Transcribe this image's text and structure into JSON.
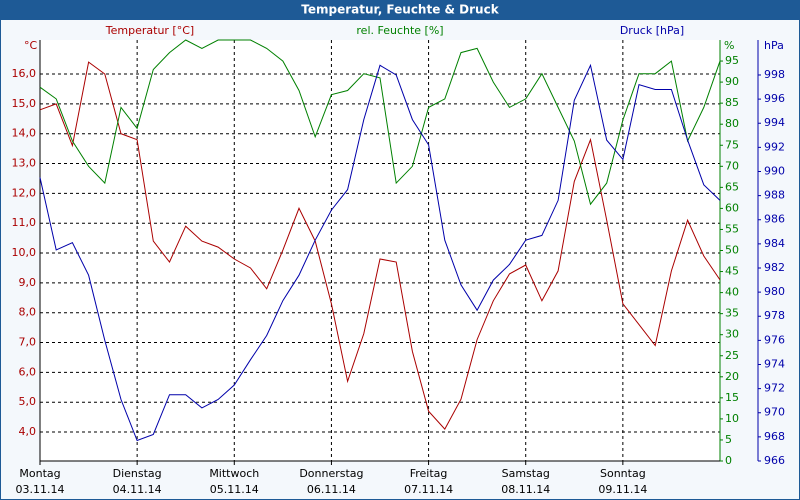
{
  "chart_data": {
    "type": "line",
    "title": "Temperatur, Feuchte & Druck",
    "ylabel": "Temperatur [°C]",
    "y_unit": "°C",
    "y2label": "rel. Feuchte [%]",
    "y2_unit": "%",
    "y3label": "Druck [hPa]",
    "y3_unit": "hPa",
    "xlim": [
      0,
      168
    ],
    "xticks": [
      {
        "value": 0,
        "label": "Montag",
        "date": "03.11.14"
      },
      {
        "value": 24,
        "label": "Dienstag",
        "date": "04.11.14"
      },
      {
        "value": 48,
        "label": "Mittwoch",
        "date": "05.11.14"
      },
      {
        "value": 72,
        "label": "Donnerstag",
        "date": "06.11.14"
      },
      {
        "value": 96,
        "label": "Freitag",
        "date": "07.11.14"
      },
      {
        "value": 120,
        "label": "Samstag",
        "date": "08.11.14"
      },
      {
        "value": 144,
        "label": "Sonntag",
        "date": "09.11.14"
      }
    ],
    "ylim": [
      3.03,
      17.14
    ],
    "yticks": [
      {
        "value": 4,
        "label": "4,0"
      },
      {
        "value": 5,
        "label": "5,0"
      },
      {
        "value": 6,
        "label": "6,0"
      },
      {
        "value": 7,
        "label": "7,0"
      },
      {
        "value": 8,
        "label": "8,0"
      },
      {
        "value": 9,
        "label": "9,0"
      },
      {
        "value": 10,
        "label": "10,0"
      },
      {
        "value": 11,
        "label": "11,0"
      },
      {
        "value": 12,
        "label": "12,0"
      },
      {
        "value": 13,
        "label": "13,0"
      },
      {
        "value": 14,
        "label": "14,0"
      },
      {
        "value": 15,
        "label": "15,0"
      },
      {
        "value": 16,
        "label": "16,0"
      }
    ],
    "y2lim": [
      0,
      100
    ],
    "y2ticks": [
      0,
      5,
      10,
      15,
      20,
      25,
      30,
      35,
      40,
      45,
      50,
      55,
      60,
      65,
      70,
      75,
      80,
      85,
      90,
      95
    ],
    "y3lim": [
      966,
      1000.9
    ],
    "y3ticks": [
      966,
      968,
      970,
      972,
      974,
      976,
      978,
      980,
      982,
      984,
      986,
      988,
      990,
      992,
      994,
      996,
      998
    ],
    "grid": true,
    "x": [
      0,
      4,
      8,
      12,
      16,
      20,
      24,
      28,
      32,
      36,
      40,
      44,
      48,
      52,
      56,
      60,
      64,
      68,
      72,
      76,
      80,
      84,
      88,
      92,
      96,
      100,
      104,
      108,
      112,
      116,
      120,
      124,
      128,
      132,
      136,
      140,
      144,
      148,
      152,
      156,
      160,
      164,
      168
    ],
    "series": [
      {
        "name": "Temperatur",
        "color": "#aa0000",
        "axis": "y",
        "values": [
          14.8,
          15.0,
          13.6,
          16.4,
          16.0,
          14.0,
          13.8,
          10.4,
          9.7,
          10.9,
          10.4,
          10.2,
          9.8,
          9.5,
          8.8,
          10.1,
          11.5,
          10.4,
          8.3,
          5.7,
          7.3,
          9.8,
          9.7,
          6.7,
          4.7,
          4.1,
          5.1,
          7.1,
          8.4,
          9.3,
          9.6,
          8.4,
          9.4,
          12.4,
          13.8,
          11.1,
          8.3,
          7.6,
          6.9,
          9.4,
          11.1,
          9.9,
          9.1
        ]
      },
      {
        "name": "rel. Feuchte",
        "color": "#008000",
        "axis": "y2",
        "values": [
          88.8,
          86,
          76,
          70,
          66,
          84,
          79,
          93,
          97,
          100,
          98,
          100,
          100,
          100,
          98,
          95,
          88,
          77,
          87,
          88,
          92,
          91,
          66,
          70,
          84,
          86,
          97,
          98,
          90,
          84,
          86,
          92,
          84,
          76,
          61,
          66,
          81,
          92,
          92,
          95,
          76,
          84,
          95
        ]
      },
      {
        "name": "Druck",
        "color": "#0000aa",
        "axis": "y3",
        "values": [
          989.5,
          983.5,
          984.1,
          981.4,
          976.0,
          971.1,
          967.7,
          968.2,
          971.5,
          971.5,
          970.4,
          971.1,
          972.3,
          974.4,
          976.4,
          979.3,
          981.4,
          984.3,
          986.8,
          988.5,
          994.3,
          998.8,
          998.0,
          994.3,
          992.2,
          984.3,
          980.6,
          978.5,
          981.0,
          982.3,
          984.3,
          984.7,
          987.6,
          995.9,
          998.8,
          992.6,
          991.0,
          997.2,
          996.8,
          996.8,
          992.6,
          988.9,
          987.6
        ]
      }
    ]
  }
}
